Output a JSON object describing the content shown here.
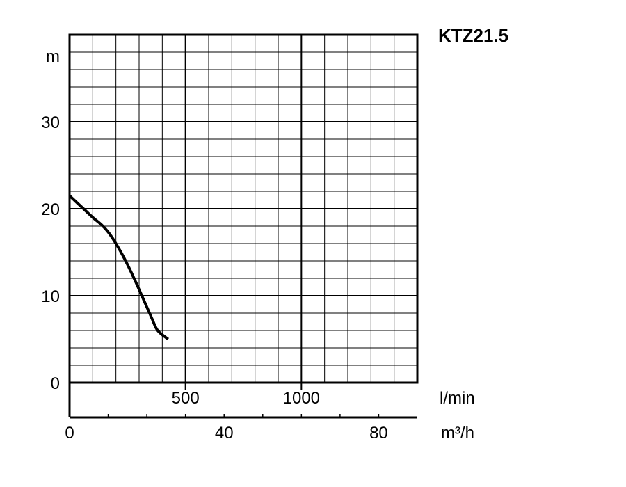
{
  "chart_data": {
    "type": "line",
    "title": "KTZ21.5",
    "ylabel": "m",
    "ylim": [
      0,
      40
    ],
    "y_ticks": [
      0,
      10,
      20,
      30
    ],
    "x_primary": {
      "unit": "l/min",
      "range": [
        0,
        1500
      ],
      "ticks": [
        500,
        1000
      ]
    },
    "x_secondary": {
      "unit": "m³/h",
      "range": [
        0,
        90
      ],
      "ticks": [
        0,
        40,
        80
      ]
    },
    "grid": true,
    "series": [
      {
        "x": [
          0,
          60,
          100,
          140,
          170,
          200,
          240,
          280,
          320,
          355,
          380,
          425
        ],
        "y": [
          21.5,
          20.0,
          19.0,
          18.1,
          17.2,
          16.0,
          14.1,
          11.9,
          9.5,
          7.4,
          6.0,
          5.0
        ]
      }
    ]
  }
}
